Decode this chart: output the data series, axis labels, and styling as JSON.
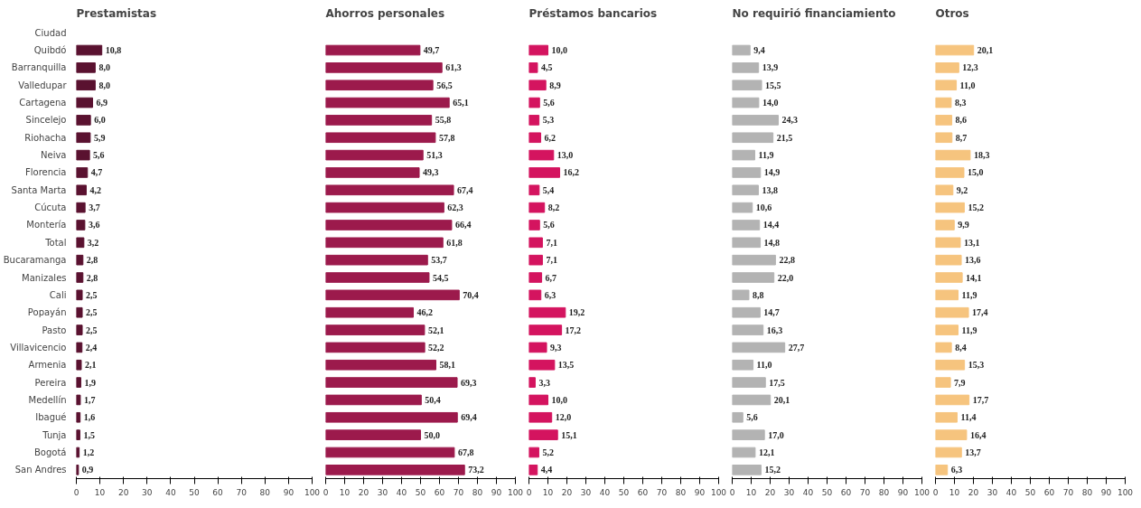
{
  "chart_data": [
    {
      "type": "bar",
      "orientation": "horizontal",
      "title": "Prestamistas",
      "ylabel": "Ciudad",
      "color": "#5a1230",
      "xlim": [
        0,
        100
      ],
      "xticks": [
        0,
        10,
        20,
        30,
        40,
        50,
        60,
        70,
        80,
        90,
        100
      ],
      "grid": false,
      "categories": [
        "Quibdó",
        "Barranquilla",
        "Valledupar",
        "Cartagena",
        "Sincelejo",
        "Riohacha",
        "Neiva",
        "Florencia",
        "Santa Marta",
        "Cúcuta",
        "Montería",
        "Total",
        "Bucaramanga",
        "Manizales",
        "Cali",
        "Popayán",
        "Pasto",
        "Villavicencio",
        "Armenia",
        "Pereira",
        "Medellín",
        "Ibagué",
        "Tunja",
        "Bogotá",
        "San Andres"
      ],
      "values": [
        10.8,
        8.0,
        8.0,
        6.9,
        6.0,
        5.9,
        5.6,
        4.7,
        4.2,
        3.7,
        3.6,
        3.2,
        2.8,
        2.8,
        2.5,
        2.5,
        2.5,
        2.4,
        2.1,
        1.9,
        1.7,
        1.6,
        1.5,
        1.2,
        0.9
      ],
      "value_labels": [
        "10,8",
        "8,0",
        "8,0",
        "6,9",
        "6,0",
        "5,9",
        "5,6",
        "4,7",
        "4,2",
        "3,7",
        "3,6",
        "3,2",
        "2,8",
        "2,8",
        "2,5",
        "2,5",
        "2,5",
        "2,4",
        "2,1",
        "1,9",
        "1,7",
        "1,6",
        "1,5",
        "1,2",
        "0,9"
      ]
    },
    {
      "type": "bar",
      "orientation": "horizontal",
      "title": "Ahorros personales",
      "color": "#9c1a4c",
      "xlim": [
        0,
        100
      ],
      "xticks": [
        0,
        10,
        20,
        30,
        40,
        50,
        60,
        70,
        80,
        90,
        100
      ],
      "grid": false,
      "tick_labels": "x",
      "categories": [
        "Quibdó",
        "Barranquilla",
        "Valledupar",
        "Cartagena",
        "Sincelejo",
        "Riohacha",
        "Neiva",
        "Florencia",
        "Santa Marta",
        "Cúcuta",
        "Montería",
        "Total",
        "Bucaramanga",
        "Manizales",
        "Cali",
        "Popayán",
        "Pasto",
        "Villavicencio",
        "Armenia",
        "Pereira",
        "Medellín",
        "Ibagué",
        "Tunja",
        "Bogotá",
        "San Andres"
      ],
      "values": [
        49.7,
        61.3,
        56.5,
        65.1,
        55.8,
        57.8,
        51.3,
        49.3,
        67.4,
        62.3,
        66.4,
        61.8,
        53.7,
        54.5,
        70.4,
        46.2,
        52.1,
        52.2,
        58.1,
        69.3,
        50.4,
        69.4,
        50.0,
        67.8,
        73.2
      ],
      "value_labels": [
        "49,7",
        "61,3",
        "56,5",
        "65,1",
        "55,8",
        "57,8",
        "51,3",
        "49,3",
        "67,4",
        "62,3",
        "66,4",
        "61,8",
        "53,7",
        "54,5",
        "70,4",
        "46,2",
        "52,1",
        "52,2",
        "58,1",
        "69,3",
        "50,4",
        "69,4",
        "50,0",
        "67,8",
        "73,2"
      ]
    },
    {
      "type": "bar",
      "orientation": "horizontal",
      "title": "Préstamos bancarios",
      "color": "#d4145f",
      "xlim": [
        0,
        100
      ],
      "xticks": [
        0,
        10,
        20,
        30,
        40,
        50,
        60,
        70,
        80,
        90,
        100
      ],
      "grid": false,
      "tick_labels": "x",
      "categories": [
        "Quibdó",
        "Barranquilla",
        "Valledupar",
        "Cartagena",
        "Sincelejo",
        "Riohacha",
        "Neiva",
        "Florencia",
        "Santa Marta",
        "Cúcuta",
        "Montería",
        "Total",
        "Bucaramanga",
        "Manizales",
        "Cali",
        "Popayán",
        "Pasto",
        "Villavicencio",
        "Armenia",
        "Pereira",
        "Medellín",
        "Ibagué",
        "Tunja",
        "Bogotá",
        "San Andres"
      ],
      "values": [
        10.0,
        4.5,
        8.9,
        5.6,
        5.3,
        6.2,
        13.0,
        16.2,
        5.4,
        8.2,
        5.6,
        7.1,
        7.1,
        6.7,
        6.3,
        19.2,
        17.2,
        9.3,
        13.5,
        3.3,
        10.0,
        12.0,
        15.1,
        5.2,
        4.4
      ],
      "value_labels": [
        "10,0",
        "4,5",
        "8,9",
        "5,6",
        "5,3",
        "6,2",
        "13,0",
        "16,2",
        "5,4",
        "8,2",
        "5,6",
        "7,1",
        "7,1",
        "6,7",
        "6,3",
        "19,2",
        "17,2",
        "9,3",
        "13,5",
        "3,3",
        "10,0",
        "12,0",
        "15,1",
        "5,2",
        "4,4"
      ]
    },
    {
      "type": "bar",
      "orientation": "horizontal",
      "title": "No requirió financiamiento",
      "color": "#b3b3b3",
      "xlim": [
        0,
        100
      ],
      "xticks": [
        0,
        10,
        20,
        30,
        40,
        50,
        60,
        70,
        80,
        90,
        100
      ],
      "grid": false,
      "tick_labels": "x",
      "categories": [
        "Quibdó",
        "Barranquilla",
        "Valledupar",
        "Cartagena",
        "Sincelejo",
        "Riohacha",
        "Neiva",
        "Florencia",
        "Santa Marta",
        "Cúcuta",
        "Montería",
        "Total",
        "Bucaramanga",
        "Manizales",
        "Cali",
        "Popayán",
        "Pasto",
        "Villavicencio",
        "Armenia",
        "Pereira",
        "Medellín",
        "Ibagué",
        "Tunja",
        "Bogotá",
        "San Andres"
      ],
      "values": [
        9.4,
        13.9,
        15.5,
        14.0,
        24.3,
        21.5,
        11.9,
        14.9,
        13.8,
        10.6,
        14.4,
        14.8,
        22.8,
        22.0,
        8.8,
        14.7,
        16.3,
        27.7,
        11.0,
        17.5,
        20.1,
        5.6,
        17.0,
        12.1,
        15.2
      ],
      "value_labels": [
        "9,4",
        "13,9",
        "15,5",
        "14,0",
        "24,3",
        "21,5",
        "11,9",
        "14,9",
        "13,8",
        "10,6",
        "14,4",
        "14,8",
        "22,8",
        "22,0",
        "8,8",
        "14,7",
        "16,3",
        "27,7",
        "11,0",
        "17,5",
        "20,1",
        "5,6",
        "17,0",
        "12,1",
        "15,2"
      ]
    },
    {
      "type": "bar",
      "orientation": "horizontal",
      "title": "Otros",
      "color": "#f6c47e",
      "xlim": [
        0,
        100
      ],
      "xticks": [
        0,
        10,
        20,
        30,
        40,
        50,
        60,
        70,
        80,
        90,
        100
      ],
      "grid": false,
      "tick_labels": "x",
      "categories": [
        "Quibdó",
        "Barranquilla",
        "Valledupar",
        "Cartagena",
        "Sincelejo",
        "Riohacha",
        "Neiva",
        "Florencia",
        "Santa Marta",
        "Cúcuta",
        "Montería",
        "Total",
        "Bucaramanga",
        "Manizales",
        "Cali",
        "Popayán",
        "Pasto",
        "Villavicencio",
        "Armenia",
        "Pereira",
        "Medellín",
        "Ibagué",
        "Tunja",
        "Bogotá",
        "San Andres"
      ],
      "values": [
        20.1,
        12.3,
        11.0,
        8.3,
        8.6,
        8.7,
        18.3,
        15.0,
        9.2,
        15.2,
        9.9,
        13.1,
        13.6,
        14.1,
        11.9,
        17.4,
        11.9,
        8.4,
        15.3,
        7.9,
        17.7,
        11.4,
        16.4,
        13.7,
        6.3
      ],
      "value_labels": [
        "20,1",
        "12,3",
        "11,0",
        "8,3",
        "8,6",
        "8,7",
        "18,3",
        "15,0",
        "9,2",
        "15,2",
        "9,9",
        "13,1",
        "13,6",
        "14,1",
        "11,9",
        "17,4",
        "11,9",
        "8,4",
        "15,3",
        "7,9",
        "17,7",
        "11,4",
        "16,4",
        "13,7",
        "6,3"
      ]
    }
  ]
}
